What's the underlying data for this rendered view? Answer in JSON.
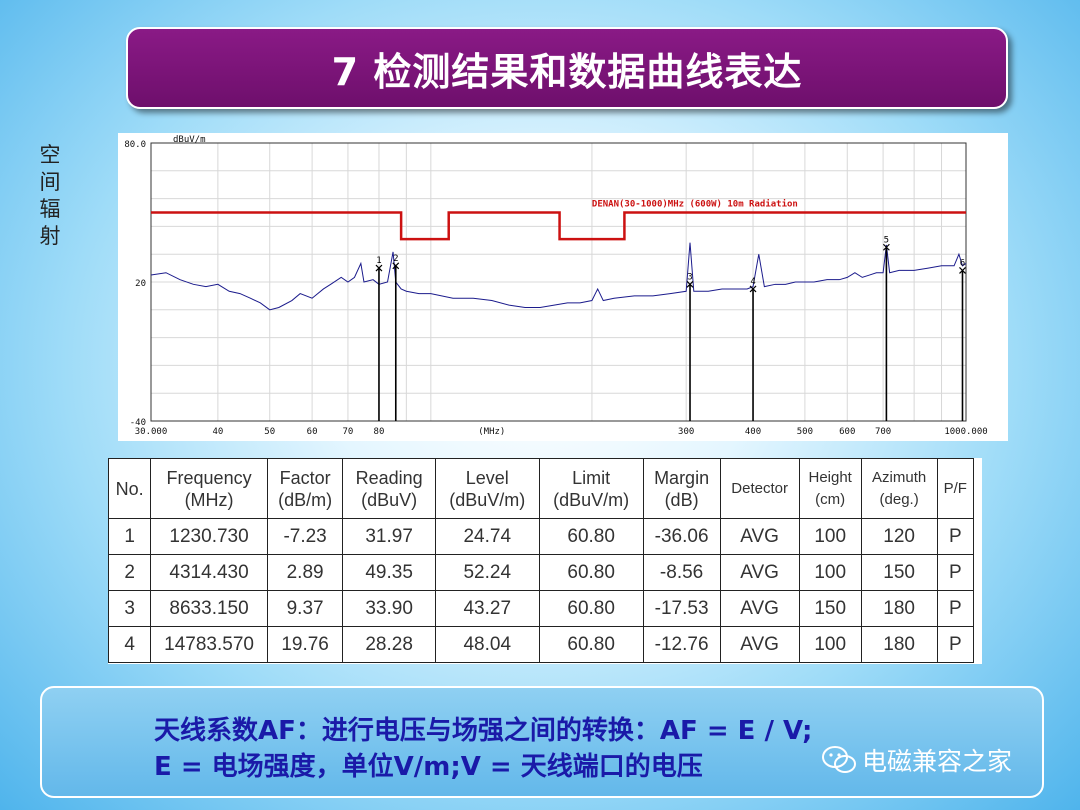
{
  "slide": {
    "title": "7 检测结果和数据曲线表达",
    "side_label": "空间辐射"
  },
  "chart_data": {
    "type": "line",
    "title": "",
    "ylabel": "dBuV/m",
    "xlabel": "(MHz)",
    "x_scale": "log",
    "xlim": [
      30,
      1000
    ],
    "ylim": [
      -40,
      80
    ],
    "y_ticks": [
      "80.0",
      "20",
      "-40"
    ],
    "x_ticks": [
      {
        "v": 30,
        "label": "30.000"
      },
      {
        "v": 40,
        "label": "40"
      },
      {
        "v": 50,
        "label": "50"
      },
      {
        "v": 60,
        "label": "60"
      },
      {
        "v": 70,
        "label": "70"
      },
      {
        "v": 80,
        "label": "80"
      },
      {
        "v": 300,
        "label": "300"
      },
      {
        "v": 400,
        "label": "400"
      },
      {
        "v": 500,
        "label": "500"
      },
      {
        "v": 600,
        "label": "600"
      },
      {
        "v": 700,
        "label": "700"
      },
      {
        "v": 1000,
        "label": "1000.000"
      }
    ],
    "limit_line": {
      "name": "DENAN(30-1000)MHz (600W) 10m Radiation",
      "color": "#cc1111",
      "points": [
        [
          30,
          50
        ],
        [
          88,
          50
        ],
        [
          88,
          38.5
        ],
        [
          108,
          38.5
        ],
        [
          108,
          50
        ],
        [
          174,
          50
        ],
        [
          174,
          38.5
        ],
        [
          230,
          38.5
        ],
        [
          230,
          50
        ],
        [
          1000,
          50
        ]
      ]
    },
    "series": [
      {
        "color": "#1b1b8c",
        "values": [
          [
            30,
            23
          ],
          [
            32,
            24
          ],
          [
            34,
            21
          ],
          [
            36,
            19
          ],
          [
            38,
            18
          ],
          [
            40,
            19
          ],
          [
            42,
            16
          ],
          [
            44,
            15
          ],
          [
            46,
            13
          ],
          [
            48,
            11
          ],
          [
            50,
            8
          ],
          [
            52,
            9
          ],
          [
            55,
            12
          ],
          [
            57,
            15
          ],
          [
            60,
            13
          ],
          [
            63,
            17
          ],
          [
            65,
            19
          ],
          [
            68,
            22
          ],
          [
            70,
            20
          ],
          [
            72,
            22
          ],
          [
            74,
            28
          ],
          [
            75,
            20
          ],
          [
            78,
            21
          ],
          [
            80,
            19
          ],
          [
            83,
            20
          ],
          [
            85,
            33
          ],
          [
            86,
            20
          ],
          [
            88,
            17
          ],
          [
            90,
            16
          ],
          [
            95,
            15
          ],
          [
            100,
            15
          ],
          [
            110,
            13
          ],
          [
            120,
            13
          ],
          [
            130,
            12
          ],
          [
            140,
            10
          ],
          [
            150,
            9
          ],
          [
            160,
            9
          ],
          [
            170,
            10
          ],
          [
            180,
            11
          ],
          [
            190,
            11
          ],
          [
            200,
            12
          ],
          [
            205,
            17
          ],
          [
            210,
            12
          ],
          [
            220,
            13
          ],
          [
            240,
            14
          ],
          [
            260,
            14
          ],
          [
            280,
            15
          ],
          [
            300,
            16
          ],
          [
            305,
            37
          ],
          [
            310,
            16
          ],
          [
            330,
            16
          ],
          [
            350,
            17
          ],
          [
            370,
            17
          ],
          [
            390,
            17
          ],
          [
            400,
            18
          ],
          [
            410,
            32
          ],
          [
            420,
            18
          ],
          [
            440,
            19
          ],
          [
            460,
            19
          ],
          [
            480,
            20
          ],
          [
            500,
            20
          ],
          [
            520,
            20
          ],
          [
            550,
            21
          ],
          [
            580,
            21
          ],
          [
            600,
            22
          ],
          [
            620,
            24
          ],
          [
            640,
            22
          ],
          [
            660,
            23
          ],
          [
            680,
            24
          ],
          [
            700,
            24
          ],
          [
            710,
            36
          ],
          [
            720,
            24
          ],
          [
            750,
            25
          ],
          [
            800,
            25
          ],
          [
            850,
            26
          ],
          [
            900,
            27
          ],
          [
            950,
            27
          ],
          [
            970,
            32
          ],
          [
            985,
            27
          ],
          [
            1000,
            28
          ]
        ]
      }
    ],
    "markers": [
      {
        "label": "1",
        "x": 80,
        "y": 26
      },
      {
        "label": "2",
        "x": 86,
        "y": 27
      },
      {
        "label": "3",
        "x": 305,
        "y": 19
      },
      {
        "label": "4",
        "x": 400,
        "y": 17
      },
      {
        "label": "5",
        "x": 710,
        "y": 35
      },
      {
        "label": "6",
        "x": 985,
        "y": 25
      }
    ]
  },
  "table": {
    "headers": [
      [
        "No."
      ],
      [
        "Frequency",
        "(MHz)"
      ],
      [
        "Factor",
        "(dB/m)"
      ],
      [
        "Reading",
        "(dBuV)"
      ],
      [
        "Level",
        "(dBuV/m)"
      ],
      [
        "Limit",
        "(dBuV/m)"
      ],
      [
        "Margin",
        "(dB)"
      ],
      [
        "Detector"
      ],
      [
        "Height",
        "(cm)"
      ],
      [
        "Azimuth",
        "(deg.)"
      ],
      [
        "P/F"
      ]
    ],
    "rows": [
      [
        "1",
        "1230.730",
        "-7.23",
        "31.97",
        "24.74",
        "60.80",
        "-36.06",
        "AVG",
        "100",
        "120",
        "P"
      ],
      [
        "2",
        "4314.430",
        "2.89",
        "49.35",
        "52.24",
        "60.80",
        "-8.56",
        "AVG",
        "100",
        "150",
        "P"
      ],
      [
        "3",
        "8633.150",
        "9.37",
        "33.90",
        "43.27",
        "60.80",
        "-17.53",
        "AVG",
        "150",
        "180",
        "P"
      ],
      [
        "4",
        "14783.570",
        "19.76",
        "28.28",
        "48.04",
        "60.80",
        "-12.76",
        "AVG",
        "100",
        "180",
        "P"
      ]
    ]
  },
  "note": {
    "line1": "天线系数AF：进行电压与场强之间的转换：AF = E / V;",
    "line2": "E = 电场强度，单位V/m;V = 天线端口的电压"
  },
  "watermark": {
    "text": "电磁兼容之家",
    "icon": "wechat-icon"
  },
  "colors": {
    "title_bg": "#7a137a",
    "limit_line": "#cc1111",
    "trace": "#1b1b8c",
    "note_text": "#1a1aa8"
  }
}
